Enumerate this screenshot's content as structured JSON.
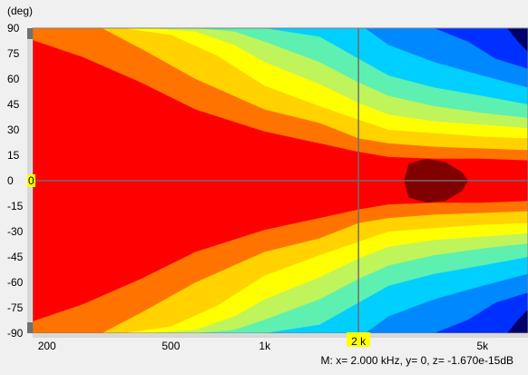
{
  "chart_data": {
    "type": "heatmap",
    "ylabel": "(deg)",
    "x_scale": "log",
    "x_unit": "Hz",
    "xlim": [
      180,
      7000
    ],
    "ylim": [
      -90,
      90
    ],
    "y_ticks": [
      90,
      75,
      60,
      45,
      30,
      15,
      0,
      -15,
      -30,
      -45,
      -60,
      -75,
      -90
    ],
    "x_ticks": [
      {
        "value": 200,
        "label": "200"
      },
      {
        "value": 500,
        "label": "500"
      },
      {
        "value": 1000,
        "label": "1k"
      },
      {
        "value": 5000,
        "label": "5k"
      }
    ],
    "color_levels": [
      "#ff0000",
      "#ff7400",
      "#ffd200",
      "#ffff00",
      "#bff45a",
      "#5ef0b0",
      "#00cfff",
      "#0088ff",
      "#0030ff",
      "#00006a"
    ],
    "hot_color": "#800000",
    "contours": [
      {
        "level": 1,
        "edge": [
          {
            "f": 180,
            "a": 83
          },
          {
            "f": 260,
            "a": 73
          },
          {
            "f": 400,
            "a": 58
          },
          {
            "f": 600,
            "a": 42
          },
          {
            "f": 1000,
            "a": 29
          },
          {
            "f": 1500,
            "a": 22
          },
          {
            "f": 2000,
            "a": 17
          },
          {
            "f": 2500,
            "a": 14
          },
          {
            "f": 3500,
            "a": 13
          },
          {
            "f": 5000,
            "a": 13
          },
          {
            "f": 7000,
            "a": 12
          }
        ]
      },
      {
        "level": 2,
        "edge": [
          {
            "f": 300,
            "a": 90
          },
          {
            "f": 400,
            "a": 78
          },
          {
            "f": 600,
            "a": 60
          },
          {
            "f": 1000,
            "a": 42
          },
          {
            "f": 1500,
            "a": 34
          },
          {
            "f": 2000,
            "a": 25
          },
          {
            "f": 2500,
            "a": 22
          },
          {
            "f": 3500,
            "a": 20
          },
          {
            "f": 5000,
            "a": 19
          },
          {
            "f": 7000,
            "a": 18
          }
        ]
      },
      {
        "level": 3,
        "edge": [
          {
            "f": 350,
            "a": 90
          },
          {
            "f": 500,
            "a": 86
          },
          {
            "f": 700,
            "a": 74
          },
          {
            "f": 1000,
            "a": 56
          },
          {
            "f": 1500,
            "a": 44
          },
          {
            "f": 2000,
            "a": 36
          },
          {
            "f": 2500,
            "a": 30
          },
          {
            "f": 3500,
            "a": 28
          },
          {
            "f": 5000,
            "a": 26
          },
          {
            "f": 7000,
            "a": 25
          }
        ]
      },
      {
        "level": 4,
        "edge": [
          {
            "f": 420,
            "a": 90
          },
          {
            "f": 600,
            "a": 88
          },
          {
            "f": 800,
            "a": 80
          },
          {
            "f": 1000,
            "a": 70
          },
          {
            "f": 1500,
            "a": 57
          },
          {
            "f": 2000,
            "a": 46
          },
          {
            "f": 2500,
            "a": 39
          },
          {
            "f": 3500,
            "a": 35
          },
          {
            "f": 5000,
            "a": 33
          },
          {
            "f": 7000,
            "a": 31
          }
        ]
      },
      {
        "level": 5,
        "edge": [
          {
            "f": 600,
            "a": 90
          },
          {
            "f": 800,
            "a": 88
          },
          {
            "f": 1000,
            "a": 82
          },
          {
            "f": 1500,
            "a": 70
          },
          {
            "f": 2000,
            "a": 58
          },
          {
            "f": 2500,
            "a": 50
          },
          {
            "f": 3500,
            "a": 44
          },
          {
            "f": 5000,
            "a": 40
          },
          {
            "f": 7000,
            "a": 37
          }
        ]
      },
      {
        "level": 6,
        "edge": [
          {
            "f": 1000,
            "a": 90
          },
          {
            "f": 1500,
            "a": 85
          },
          {
            "f": 2000,
            "a": 72
          },
          {
            "f": 2500,
            "a": 62
          },
          {
            "f": 3500,
            "a": 55
          },
          {
            "f": 5000,
            "a": 50
          },
          {
            "f": 7000,
            "a": 45
          }
        ]
      },
      {
        "level": 7,
        "edge": [
          {
            "f": 2100,
            "a": 90
          },
          {
            "f": 2500,
            "a": 80
          },
          {
            "f": 3500,
            "a": 70
          },
          {
            "f": 5000,
            "a": 62
          },
          {
            "f": 7000,
            "a": 55
          }
        ]
      },
      {
        "level": 8,
        "edge": [
          {
            "f": 3500,
            "a": 90
          },
          {
            "f": 4500,
            "a": 82
          },
          {
            "f": 5500,
            "a": 72
          },
          {
            "f": 7000,
            "a": 66
          }
        ]
      },
      {
        "level": 9,
        "edge": [
          {
            "f": 6000,
            "a": 90
          },
          {
            "f": 6500,
            "a": 82
          },
          {
            "f": 7000,
            "a": 76
          }
        ]
      }
    ],
    "hot_spot": [
      {
        "f": 2800,
        "a": 0
      },
      {
        "f": 2900,
        "a": 10
      },
      {
        "f": 3300,
        "a": 13
      },
      {
        "f": 3800,
        "a": 11
      },
      {
        "f": 4300,
        "a": 5
      },
      {
        "f": 4500,
        "a": 0
      },
      {
        "f": 4300,
        "a": -6
      },
      {
        "f": 3800,
        "a": -12
      },
      {
        "f": 3300,
        "a": -13
      },
      {
        "f": 2900,
        "a": -10
      }
    ],
    "marker": {
      "x": 2000,
      "y": 0,
      "x_label": "2 k",
      "y_label": "0",
      "readout": "M:  x= 2.000 kHz,  y= 0, z= -1.670e-15dB"
    }
  }
}
